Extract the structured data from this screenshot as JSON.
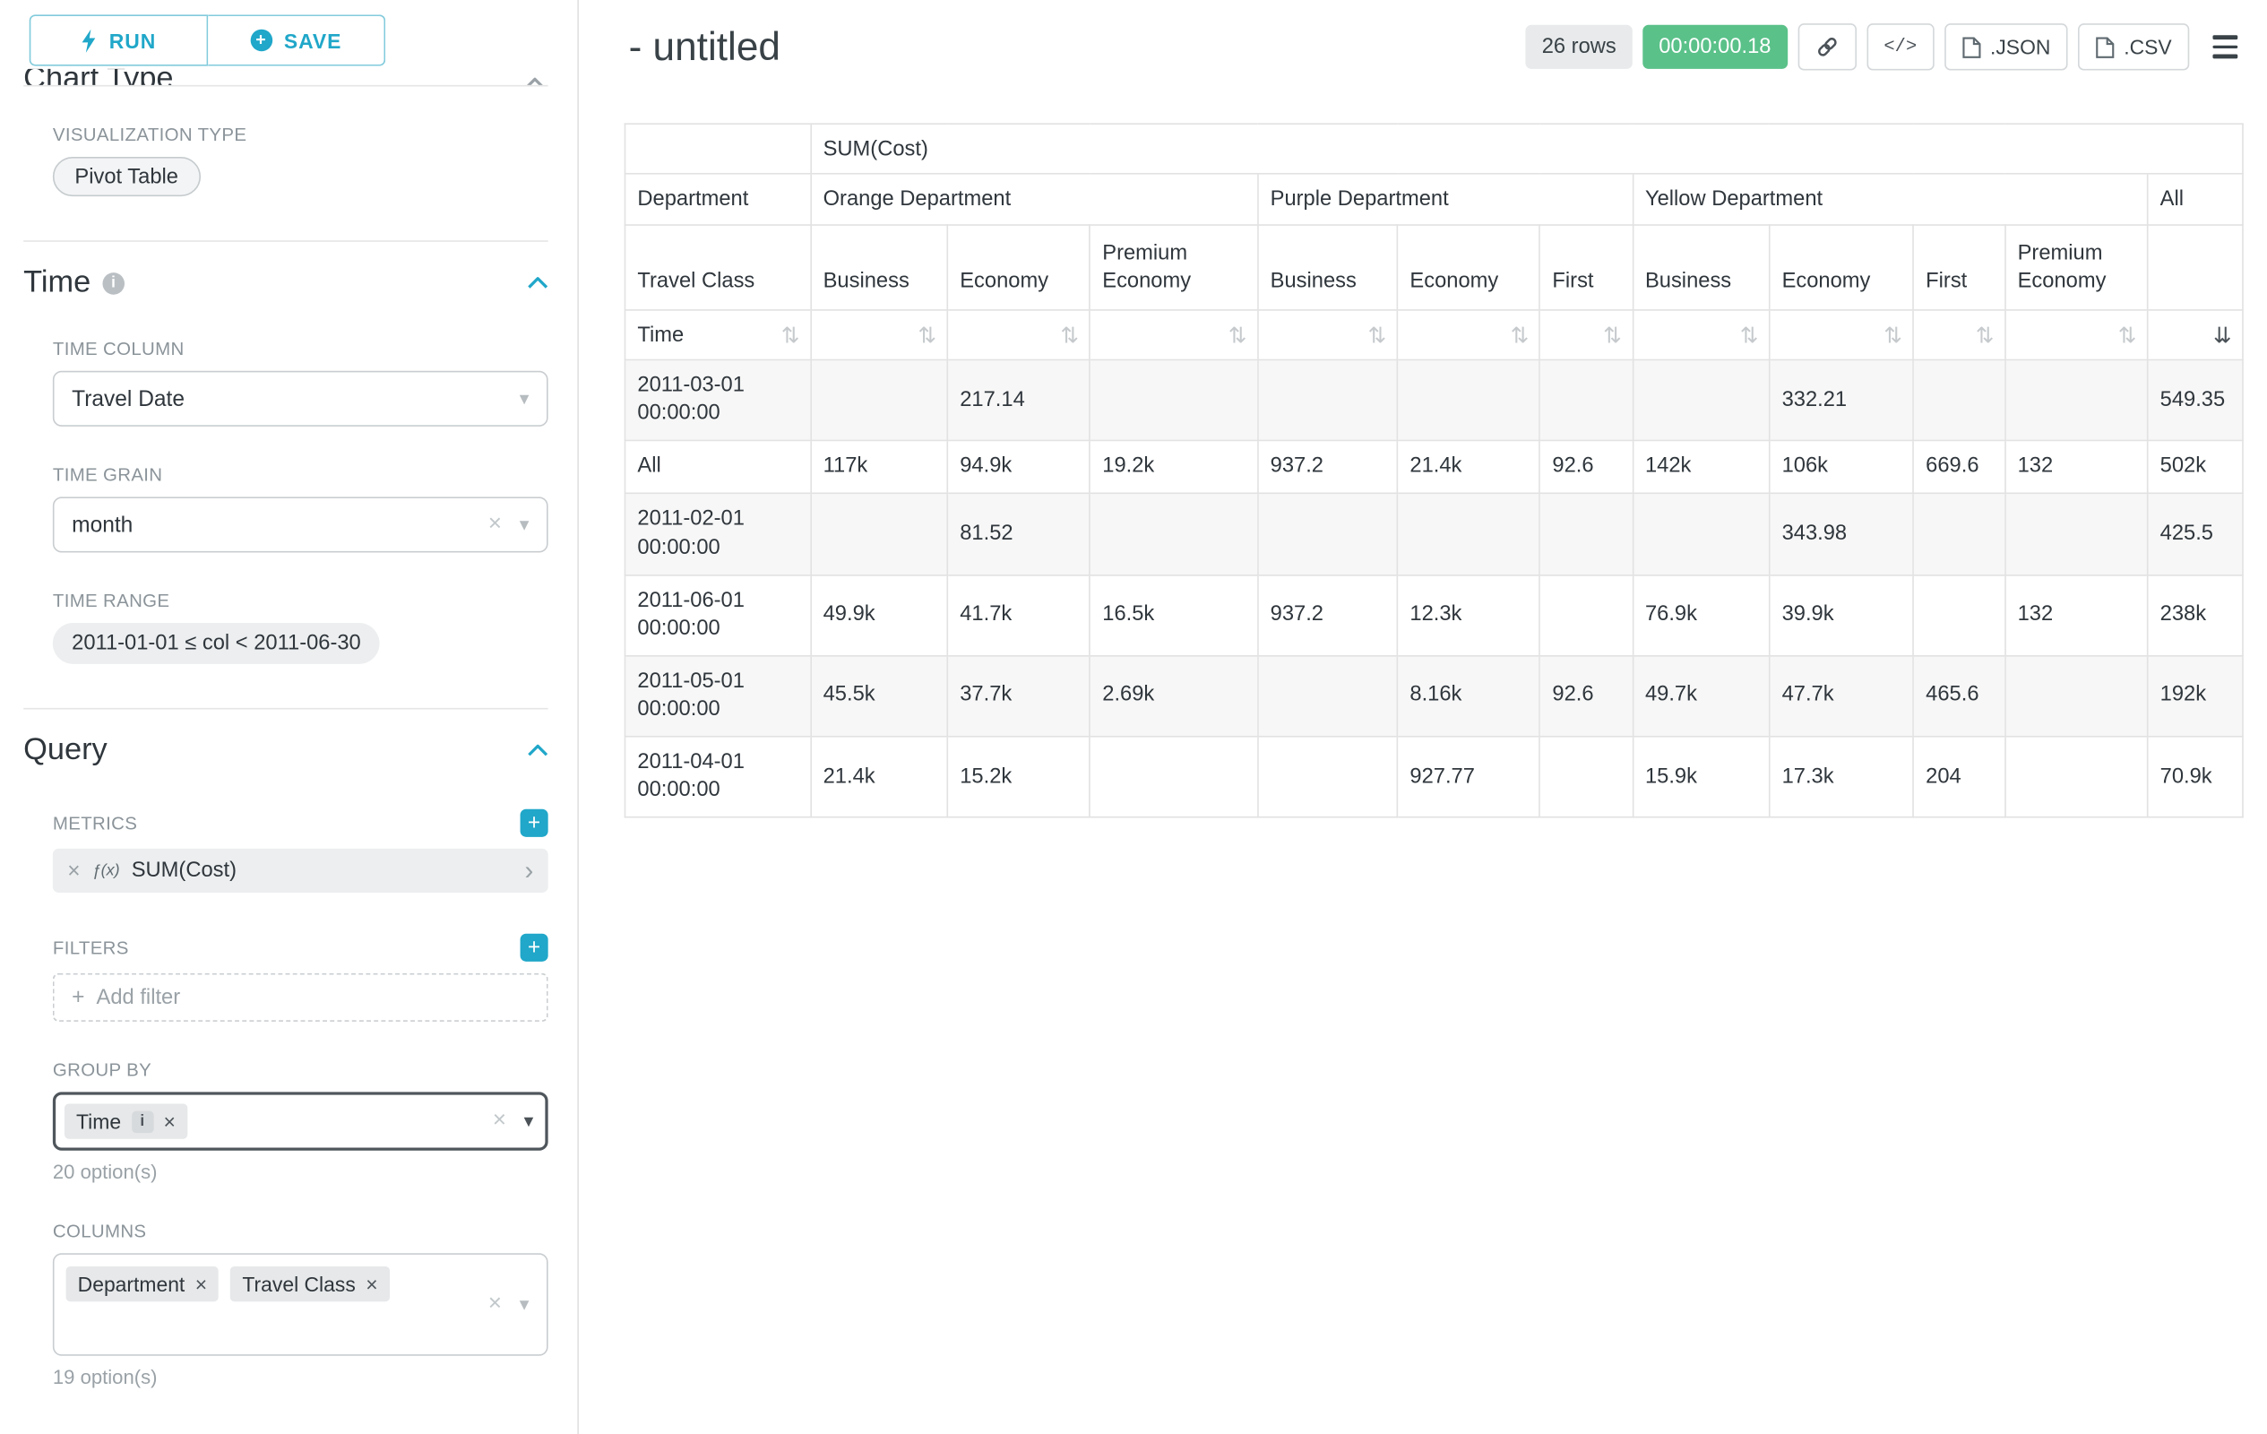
{
  "colors": {
    "accent": "#20a7c9",
    "timer_badge_bg": "#5ac189"
  },
  "icons": {
    "close": "×",
    "caret_down": "▾",
    "chevron_right": "›",
    "plus": "+",
    "info": "i",
    "sort": "⇅",
    "sort_active": "⇊",
    "code": "</>"
  },
  "sidebar": {
    "run_label": "RUN",
    "save_label": "SAVE",
    "chart_type": {
      "title": "Chart Type",
      "viz_label": "VISUALIZATION TYPE",
      "viz_value": "Pivot Table"
    },
    "time": {
      "title": "Time",
      "column_label": "TIME COLUMN",
      "column_value": "Travel Date",
      "grain_label": "TIME GRAIN",
      "grain_value": "month",
      "range_label": "TIME RANGE",
      "range_value": "2011-01-01 ≤ col < 2011-06-30"
    },
    "query": {
      "title": "Query",
      "metrics_label": "METRICS",
      "metric_fx": "ƒ(x)",
      "metric_label": "SUM(Cost)",
      "filters_label": "FILTERS",
      "add_filter_label": "Add filter",
      "group_by_label": "GROUP BY",
      "group_by_pills": [
        {
          "label": "Time"
        }
      ],
      "group_by_count": "20 option(s)",
      "columns_label": "COLUMNS",
      "columns_pills": [
        {
          "label": "Department"
        },
        {
          "label": "Travel Class"
        }
      ],
      "columns_count": "19 option(s)"
    }
  },
  "main": {
    "title": "- untitled",
    "rows_badge": "26 rows",
    "timer": "00:00:00.18",
    "export_json_label": ".JSON",
    "export_csv_label": ".CSV"
  },
  "pivot": {
    "metric": "SUM(Cost)",
    "dept_label": "Department",
    "class_label": "Travel Class",
    "time_label": "Time",
    "groups": [
      {
        "label": "Orange Department",
        "cols": [
          "Business",
          "Economy",
          "Premium Economy"
        ]
      },
      {
        "label": "Purple Department",
        "cols": [
          "Business",
          "Economy",
          "First"
        ]
      },
      {
        "label": "Yellow Department",
        "cols": [
          "Business",
          "Economy",
          "First",
          "Premium Economy"
        ]
      },
      {
        "label": "All",
        "cols": [
          ""
        ]
      }
    ],
    "rows": [
      {
        "label": "2011-03-01 00:00:00",
        "values": [
          "",
          "217.14",
          "",
          "",
          "",
          "",
          "",
          "332.21",
          "",
          "",
          "549.35"
        ]
      },
      {
        "label": "All",
        "values": [
          "117k",
          "94.9k",
          "19.2k",
          "937.2",
          "21.4k",
          "92.6",
          "142k",
          "106k",
          "669.6",
          "132",
          "502k"
        ]
      },
      {
        "label": "2011-02-01 00:00:00",
        "values": [
          "",
          "81.52",
          "",
          "",
          "",
          "",
          "",
          "343.98",
          "",
          "",
          "425.5"
        ]
      },
      {
        "label": "2011-06-01 00:00:00",
        "values": [
          "49.9k",
          "41.7k",
          "16.5k",
          "937.2",
          "12.3k",
          "",
          "76.9k",
          "39.9k",
          "",
          "132",
          "238k"
        ]
      },
      {
        "label": "2011-05-01 00:00:00",
        "values": [
          "45.5k",
          "37.7k",
          "2.69k",
          "",
          "8.16k",
          "92.6",
          "49.7k",
          "47.7k",
          "465.6",
          "",
          "192k"
        ]
      },
      {
        "label": "2011-04-01 00:00:00",
        "values": [
          "21.4k",
          "15.2k",
          "",
          "",
          "927.77",
          "",
          "15.9k",
          "17.3k",
          "204",
          "",
          "70.9k"
        ]
      }
    ]
  }
}
